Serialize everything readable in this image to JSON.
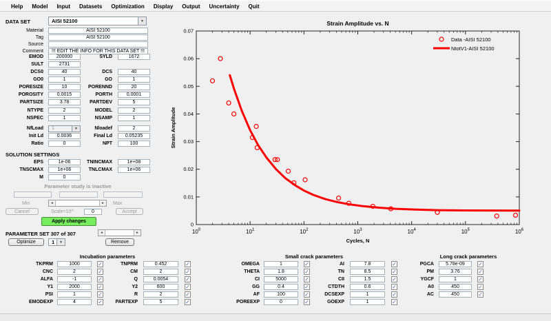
{
  "menu": {
    "items": [
      "Help",
      "Model",
      "Input",
      "Datasets",
      "Optimization",
      "Display",
      "Output",
      "Uncertainty",
      "Quit"
    ]
  },
  "icons": {
    "chevron_down": "▼",
    "arrow_left": "◄",
    "arrow_right": "►",
    "check": "✓"
  },
  "colors": {
    "accent_red": "#ff0000",
    "apply_green": "#77ed5e",
    "check_blue": "#3f62ad",
    "window_bg": "#f0f0f0",
    "axis": "#262626"
  },
  "dataset": {
    "label": "DATA SET",
    "value": "AISI 52100",
    "info_rows": [
      {
        "label": "Material",
        "value": "AISI 52100"
      },
      {
        "label": "Tag",
        "value": "AISI 52100"
      },
      {
        "label": "Source",
        "value": ""
      },
      {
        "label": "Comment",
        "value": "!!! EDIT THE INFO FOR THIS DATA SET !!!"
      }
    ]
  },
  "material_grid": {
    "block1": [
      {
        "l": "EMOD",
        "lv": "200000",
        "r": "SYLD",
        "rv": "1672"
      },
      {
        "l": "SULT",
        "lv": "2731"
      },
      {
        "l": "DCS0",
        "lv": "40",
        "r": "DCS",
        "rv": "40"
      },
      {
        "l": "GO0",
        "lv": "1",
        "r": "GO",
        "rv": "1"
      },
      {
        "l": "PORESIZE",
        "lv": "10",
        "r": "PORENND",
        "rv": "20"
      },
      {
        "l": "POROSITY",
        "lv": "0.0015",
        "r": "PORTH",
        "rv": "0.0001"
      },
      {
        "l": "PARTSIZE",
        "lv": "3.78",
        "r": "PARTDEV",
        "rv": "5"
      }
    ],
    "block2": [
      {
        "l": "NTYPE",
        "lv": "2",
        "r": "MODEL",
        "rv": "2"
      },
      {
        "l": "NSPEC",
        "lv": "1",
        "r": "NSAMP",
        "rv": "1"
      }
    ],
    "block3": [
      {
        "l": "NfLoad",
        "lv": "1",
        "lcombo": true,
        "r": "Nloadef",
        "rv": "2"
      },
      {
        "l": "Init Ld",
        "lv": "0.0036",
        "r": "Final Ld",
        "rv": "0.05235"
      },
      {
        "l": "Ratio",
        "lv": "0",
        "r": "NPT",
        "rv": "100"
      }
    ]
  },
  "solution": {
    "header": "SOLUTION SETTINGS",
    "rows": [
      {
        "l": "EPS",
        "lv": "1e-06",
        "r": "TNINCMAX",
        "rv": "1e+08"
      },
      {
        "l": "TNSCMAX",
        "lv": "1e+06",
        "r": "TNLCMAX",
        "rv": "1e+06"
      },
      {
        "l": "M",
        "lv": "0"
      }
    ]
  },
  "param_study": {
    "status": "Parameter study is inactive",
    "fields": [
      "",
      "",
      ""
    ],
    "min_label": "Min",
    "max_label": "Max",
    "cancel_label": "Cancel",
    "scale_label": "Scale=10^",
    "scale_value": "0",
    "accept_label": "Accept",
    "apply_label": "Apply changes"
  },
  "parameter_set": {
    "title": "PARAMETER SET 307 of 307",
    "optimize_label": "Optimize",
    "spinner_value": "1",
    "remove_label": "Remove"
  },
  "tables": {
    "incubation": {
      "title": "Incubation parameters",
      "rows": [
        {
          "l": "TKPRM",
          "lv": "1000",
          "r": "TNPRM",
          "rv": "0.452"
        },
        {
          "l": "CNC",
          "lv": "2",
          "r": "CM",
          "rv": "2"
        },
        {
          "l": "ALFA",
          "lv": "-1",
          "r": "Q",
          "rv": "0.0054"
        },
        {
          "l": "Y1",
          "lv": "2000",
          "r": "Y2",
          "rv": "600"
        },
        {
          "l": "PSI",
          "lv": "1",
          "r": "R",
          "rv": "2"
        },
        {
          "l": "EMODEXP",
          "lv": "4",
          "r": "PARTEXP",
          "rv": "5"
        }
      ]
    },
    "small_crack": {
      "title": "Small crack parameters",
      "rows": [
        {
          "l": "OMEGA",
          "lv": "1",
          "r": "AI",
          "rv": "7.8"
        },
        {
          "l": "THETA",
          "lv": "1.8",
          "r": "TN",
          "rv": "8.5"
        },
        {
          "l": "CI",
          "lv": "5000",
          "r": "CII",
          "rv": "1.5"
        },
        {
          "l": "GG",
          "lv": "0.4",
          "r": "CTDTH",
          "rv": "0.6"
        },
        {
          "l": "AF",
          "lv": "100",
          "r": "DCSEXP",
          "rv": "1"
        },
        {
          "l": "POREEXP",
          "lv": "0",
          "r": "GOEXP",
          "rv": "1"
        }
      ]
    },
    "long_crack": {
      "title": "Long crack parameters",
      "rows": [
        {
          "l": "PGCA",
          "lv": "5.78e-09"
        },
        {
          "l": "PM",
          "lv": "3.76"
        },
        {
          "l": "YGCF",
          "lv": "1"
        },
        {
          "l": "A0",
          "lv": "450"
        },
        {
          "l": "AC",
          "lv": "450"
        }
      ]
    }
  },
  "chart_data": {
    "type": "scatter",
    "title": "Strain Amplitude vs. N",
    "xlabel": "Cycles, N",
    "ylabel": "Strain Amplitude",
    "x_scale": "log",
    "xlim": [
      1,
      1000000
    ],
    "ylim": [
      0,
      0.07
    ],
    "xtick_exponents": [
      0,
      1,
      2,
      3,
      4,
      5,
      6
    ],
    "yticks": [
      0,
      0.01,
      0.02,
      0.03,
      0.04,
      0.05,
      0.06,
      0.07
    ],
    "grid": false,
    "legend_position": "top-right-inside",
    "series": [
      {
        "name": "Data -AISI 52100",
        "type": "scatter",
        "marker": "circle",
        "color": "#ff0000",
        "points": [
          [
            2,
            0.052
          ],
          [
            2.8,
            0.06
          ],
          [
            4,
            0.044
          ],
          [
            5,
            0.04
          ],
          [
            11,
            0.0315
          ],
          [
            13,
            0.0355
          ],
          [
            13.5,
            0.0278
          ],
          [
            29,
            0.0235
          ],
          [
            32,
            0.0235
          ],
          [
            51,
            0.0193
          ],
          [
            65,
            0.0151
          ],
          [
            105,
            0.0162
          ],
          [
            440,
            0.0096
          ],
          [
            680,
            0.0077
          ],
          [
            1900,
            0.0066
          ],
          [
            4100,
            0.0057
          ],
          [
            30000,
            0.0044
          ],
          [
            380000,
            0.0031
          ],
          [
            850000,
            0.0034
          ]
        ]
      },
      {
        "name": "NtotV1-AISI 52100",
        "type": "line",
        "color": "#ff0000",
        "points": [
          [
            4.2,
            0.054
          ],
          [
            5,
            0.0492
          ],
          [
            7,
            0.0411
          ],
          [
            10,
            0.0341
          ],
          [
            14,
            0.0288
          ],
          [
            20,
            0.0243
          ],
          [
            30,
            0.0201
          ],
          [
            45,
            0.0168
          ],
          [
            70,
            0.0141
          ],
          [
            100,
            0.0123
          ],
          [
            150,
            0.0107
          ],
          [
            250,
            0.0092
          ],
          [
            400,
            0.0082
          ],
          [
            700,
            0.0073
          ],
          [
            1200,
            0.0067
          ],
          [
            2500,
            0.0061
          ],
          [
            5000,
            0.0057
          ],
          [
            12000,
            0.0054
          ],
          [
            30000,
            0.0052
          ],
          [
            100000,
            0.0051
          ],
          [
            300000,
            0.00507
          ],
          [
            1000000,
            0.00503
          ]
        ]
      }
    ]
  }
}
